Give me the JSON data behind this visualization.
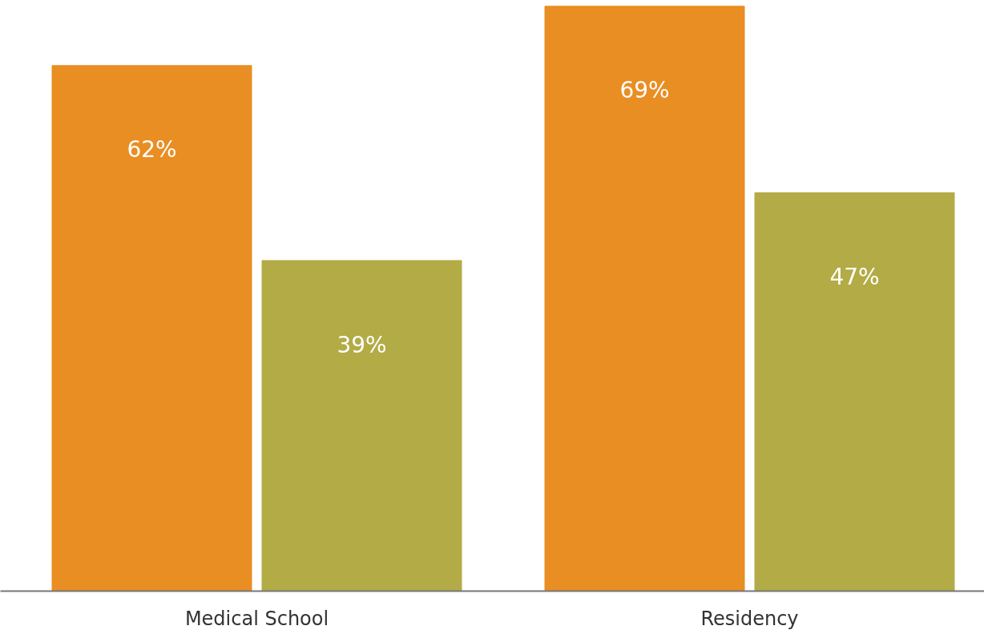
{
  "chart_data": {
    "type": "bar",
    "categories": [
      "Medical School",
      "Residency"
    ],
    "series": [
      {
        "color": "#e98e23",
        "values": [
          62,
          69
        ],
        "value_labels": [
          "62%",
          "69%"
        ]
      },
      {
        "color": "#b3ab46",
        "values": [
          39,
          47
        ],
        "value_labels": [
          "39%",
          "47%"
        ]
      }
    ],
    "grid": false,
    "tick_labels": "x"
  }
}
